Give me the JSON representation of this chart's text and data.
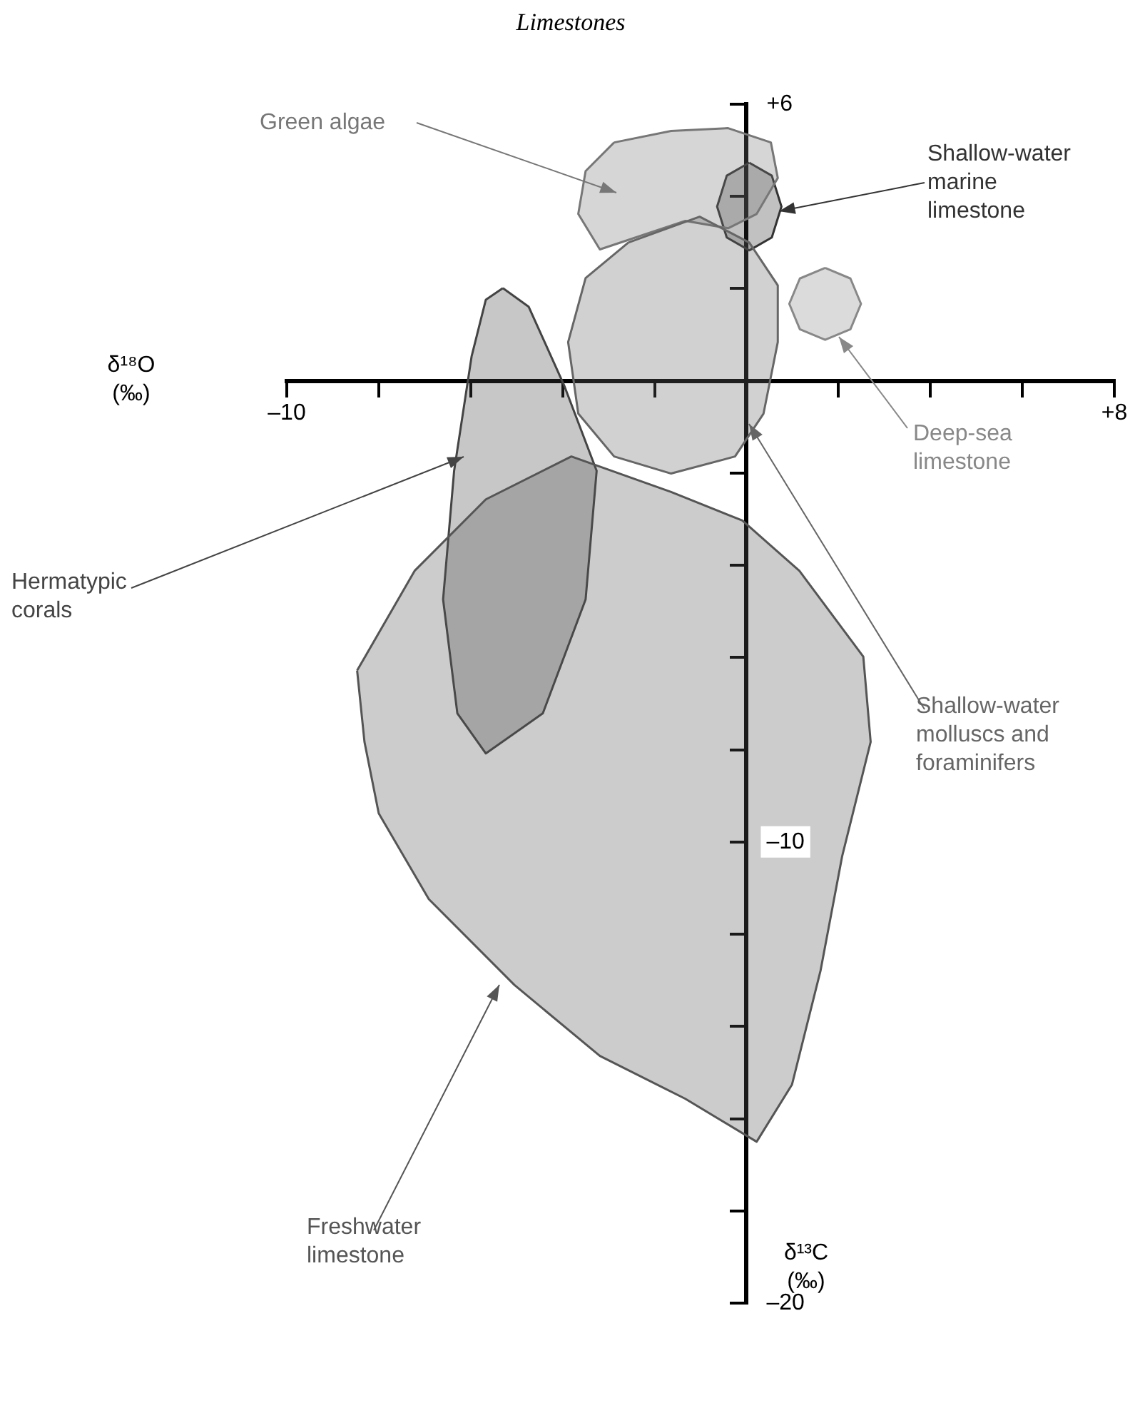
{
  "chart_data": {
    "type": "area",
    "title": "Limestones",
    "xlabel": "δ¹⁸O (‰)",
    "ylabel": "δ¹³C (‰)",
    "xlim": [
      -10,
      8
    ],
    "ylim": [
      -20,
      6
    ],
    "xticks": [
      {
        "value": -10,
        "label": "–10"
      },
      {
        "value": -8,
        "label": null
      },
      {
        "value": -6,
        "label": null
      },
      {
        "value": -4,
        "label": null
      },
      {
        "value": -2,
        "label": null
      },
      {
        "value": 0,
        "label": null
      },
      {
        "value": 2,
        "label": null
      },
      {
        "value": 4,
        "label": null
      },
      {
        "value": 6,
        "label": null
      },
      {
        "value": 8,
        "label": "+8"
      }
    ],
    "yticks": [
      {
        "value": 6,
        "label": "+6"
      },
      {
        "value": 4,
        "label": null
      },
      {
        "value": 2,
        "label": null
      },
      {
        "value": 0,
        "label": null
      },
      {
        "value": -2,
        "label": null
      },
      {
        "value": -4,
        "label": null
      },
      {
        "value": -6,
        "label": null
      },
      {
        "value": -8,
        "label": null
      },
      {
        "value": -10,
        "label": "–10"
      },
      {
        "value": -12,
        "label": null
      },
      {
        "value": -14,
        "label": null
      },
      {
        "value": -16,
        "label": null
      },
      {
        "value": -18,
        "label": null
      },
      {
        "value": -20,
        "label": "–20"
      }
    ],
    "series": [
      {
        "name": "Freshwater limestone",
        "color": "#555555",
        "x": [
          -8.47,
          -7.22,
          -5.67,
          -3.81,
          -1.64,
          -0.09,
          1.15,
          2.54,
          2.7,
          2.08,
          1.61,
          0.99,
          0.22,
          -1.33,
          -3.19,
          -5.05,
          -6.91,
          -8.0,
          -8.31
        ],
        "values": [
          -6.28,
          -4.12,
          -2.57,
          -1.64,
          -2.41,
          -3.03,
          -4.12,
          -5.98,
          -7.83,
          -10.31,
          -12.79,
          -15.26,
          -16.5,
          -15.57,
          -14.64,
          -13.1,
          -11.24,
          -9.38,
          -7.83
        ]
      },
      {
        "name": "Hermatypic corals",
        "color": "#444444",
        "x": [
          -5.3,
          -4.74,
          -3.97,
          -3.26,
          -3.5,
          -4.43,
          -5.67,
          -6.29,
          -6.6,
          -6.36,
          -5.98,
          -5.67
        ],
        "values": [
          2.01,
          1.61,
          -0.09,
          -1.95,
          -4.74,
          -7.21,
          -8.08,
          -7.21,
          -4.74,
          -1.95,
          0.53,
          1.76
        ]
      },
      {
        "name": "Shallow-water molluscs and foraminifers",
        "color": "#666666",
        "x": [
          -2.57,
          -1.02,
          0.06,
          0.68,
          0.68,
          0.37,
          -0.25,
          -1.64,
          -2.88,
          -3.66,
          -3.88,
          -3.5
        ],
        "values": [
          3.0,
          3.56,
          3.0,
          2.07,
          0.84,
          -0.71,
          -1.64,
          -2.01,
          -1.64,
          -0.71,
          0.84,
          2.23
        ]
      },
      {
        "name": "Green algae",
        "color": "#777777",
        "x": [
          -2.88,
          -1.64,
          -0.4,
          0.53,
          0.68,
          0.22,
          -0.4,
          -1.33,
          -2.26,
          -3.19,
          -3.66,
          -3.5
        ],
        "values": [
          5.17,
          5.42,
          5.48,
          5.17,
          4.4,
          3.62,
          3.31,
          3.47,
          3.16,
          2.85,
          3.62,
          4.55
        ]
      },
      {
        "name": "Shallow-water marine limestone",
        "color": "#333333",
        "x": [
          0.06,
          0.55,
          0.76,
          0.55,
          0.06,
          -0.43,
          -0.64,
          -0.43
        ],
        "values": [
          4.73,
          4.45,
          3.78,
          3.11,
          2.83,
          3.11,
          3.78,
          4.45
        ]
      },
      {
        "name": "Deep-sea limestone",
        "color": "#888888",
        "x": [
          1.71,
          2.26,
          2.49,
          2.26,
          1.71,
          1.16,
          0.93,
          1.16
        ],
        "values": [
          2.45,
          2.22,
          1.67,
          1.12,
          0.89,
          1.12,
          1.67,
          2.22
        ]
      }
    ]
  }
}
